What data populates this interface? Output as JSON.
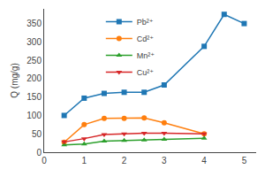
{
  "chart_data": {
    "type": "line",
    "y_label": "Q (mg/g)",
    "series": [
      {
        "name": "Pb²⁺",
        "marker": "square",
        "x": [
          0.5,
          1.0,
          1.5,
          2.0,
          2.5,
          3.0,
          4.0,
          4.5,
          5.0
        ],
        "values": [
          100,
          147,
          160,
          163,
          163,
          183,
          288,
          375,
          350
        ]
      },
      {
        "name": "Cd²⁺",
        "marker": "circle",
        "x": [
          0.5,
          1.0,
          1.5,
          2.0,
          2.5,
          3.0,
          4.0
        ],
        "values": [
          27,
          75,
          92,
          92,
          93,
          80,
          50
        ]
      },
      {
        "name": "Mn²⁺",
        "marker": "triangle-up",
        "x": [
          0.5,
          1.0,
          1.5,
          2.0,
          2.5,
          3.0,
          4.0
        ],
        "values": [
          20,
          22,
          30,
          32,
          33,
          35,
          38
        ]
      },
      {
        "name": "Cu²⁺",
        "marker": "triangle-down",
        "x": [
          0.5,
          1.0,
          1.5,
          2.0,
          2.5,
          3.0,
          4.0
        ],
        "values": [
          28,
          37,
          48,
          50,
          52,
          52,
          50
        ]
      }
    ],
    "xlim": [
      0,
      5.3
    ],
    "xticks": [
      0,
      1,
      2,
      3,
      4,
      5
    ],
    "ylim": [
      0,
      390
    ],
    "yticks": [
      0,
      50,
      100,
      150,
      200,
      250,
      300,
      350
    ],
    "grid": false,
    "legend": "upper left"
  }
}
